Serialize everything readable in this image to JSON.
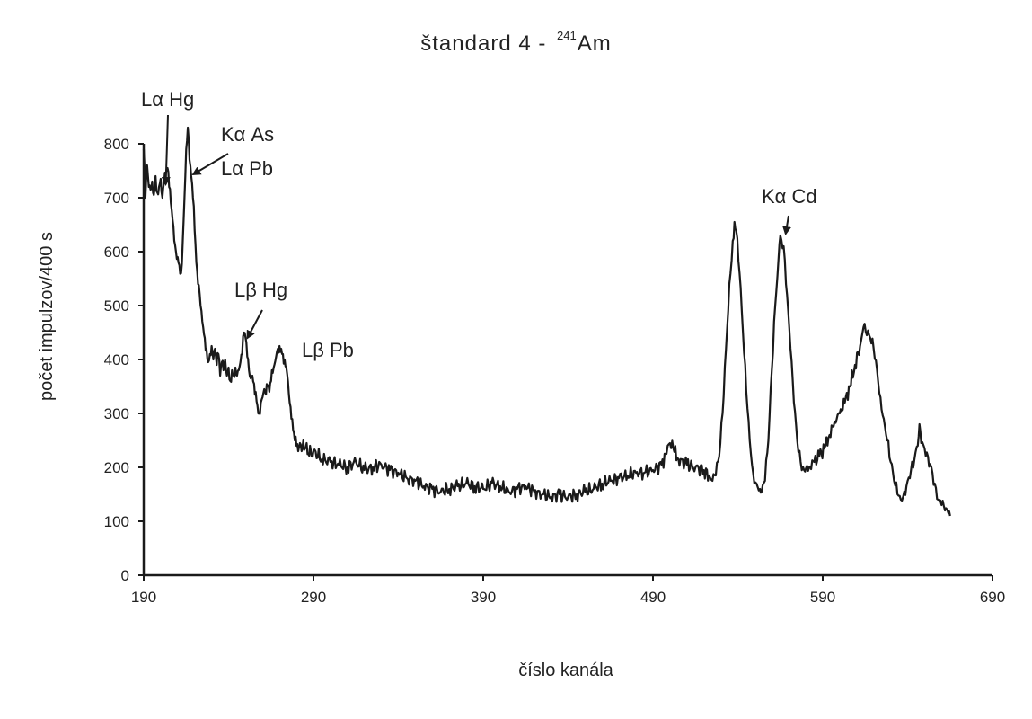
{
  "chart_data": {
    "type": "line",
    "title": "štandard 4 - ",
    "title_isotope_mass": "241",
    "title_element": "Am",
    "xlabel": "číslo kanála",
    "ylabel": "počet impulzov/400 s",
    "xlim": [
      190,
      690
    ],
    "ylim": [
      0,
      800
    ],
    "xticks": [
      "190",
      "290",
      "390",
      "490",
      "590",
      "690"
    ],
    "yticks": [
      "0",
      "100",
      "200",
      "300",
      "400",
      "500",
      "600",
      "700",
      "800"
    ],
    "grid": false,
    "line_color": "#1a1a1a",
    "series": [
      {
        "points": [
          [
            190,
            790
          ],
          [
            191,
            700
          ],
          [
            192,
            760
          ],
          [
            193,
            720
          ],
          [
            194,
            715
          ],
          [
            195,
            730
          ],
          [
            196,
            705
          ],
          [
            197,
            740
          ],
          [
            198,
            710
          ],
          [
            199,
            720
          ],
          [
            200,
            735
          ],
          [
            201,
            700
          ],
          [
            202,
            730
          ],
          [
            203,
            745
          ],
          [
            204,
            755
          ],
          [
            205,
            720
          ],
          [
            206,
            690
          ],
          [
            207,
            660
          ],
          [
            208,
            620
          ],
          [
            209,
            600
          ],
          [
            210,
            590
          ],
          [
            211,
            575
          ],
          [
            212,
            560
          ],
          [
            213,
            620
          ],
          [
            214,
            700
          ],
          [
            215,
            790
          ],
          [
            216,
            830
          ],
          [
            217,
            770
          ],
          [
            218,
            740
          ],
          [
            219,
            700
          ],
          [
            220,
            640
          ],
          [
            221,
            580
          ],
          [
            222,
            540
          ],
          [
            223,
            520
          ],
          [
            224,
            490
          ],
          [
            225,
            460
          ],
          [
            226,
            440
          ],
          [
            227,
            420
          ],
          [
            228,
            395
          ],
          [
            229,
            410
          ],
          [
            230,
            425
          ],
          [
            231,
            400
          ],
          [
            232,
            420
          ],
          [
            233,
            390
          ],
          [
            234,
            410
          ],
          [
            235,
            370
          ],
          [
            236,
            395
          ],
          [
            237,
            380
          ],
          [
            238,
            400
          ],
          [
            239,
            370
          ],
          [
            240,
            385
          ],
          [
            241,
            360
          ],
          [
            242,
            380
          ],
          [
            243,
            370
          ],
          [
            244,
            385
          ],
          [
            245,
            370
          ],
          [
            246,
            380
          ],
          [
            247,
            395
          ],
          [
            248,
            410
          ],
          [
            249,
            450
          ],
          [
            250,
            440
          ],
          [
            251,
            405
          ],
          [
            252,
            380
          ],
          [
            253,
            365
          ],
          [
            254,
            370
          ],
          [
            255,
            355
          ],
          [
            256,
            340
          ],
          [
            257,
            315
          ],
          [
            258,
            300
          ],
          [
            259,
            320
          ],
          [
            260,
            330
          ],
          [
            261,
            345
          ],
          [
            262,
            335
          ],
          [
            263,
            350
          ],
          [
            264,
            340
          ],
          [
            265,
            360
          ],
          [
            266,
            375
          ],
          [
            267,
            390
          ],
          [
            268,
            405
          ],
          [
            269,
            420
          ],
          [
            270,
            425
          ],
          [
            271,
            420
          ],
          [
            272,
            410
          ],
          [
            273,
            400
          ],
          [
            274,
            385
          ],
          [
            275,
            360
          ],
          [
            276,
            320
          ],
          [
            277,
            290
          ],
          [
            278,
            270
          ],
          [
            279,
            250
          ],
          [
            280,
            240
          ],
          [
            281,
            230
          ],
          [
            282,
            245
          ],
          [
            283,
            230
          ],
          [
            284,
            250
          ],
          [
            285,
            235
          ],
          [
            286,
            245
          ],
          [
            287,
            225
          ],
          [
            288,
            240
          ],
          [
            289,
            220
          ],
          [
            290,
            230
          ],
          [
            295,
            215
          ],
          [
            300,
            210
          ],
          [
            305,
            205
          ],
          [
            310,
            200
          ],
          [
            315,
            210
          ],
          [
            320,
            195
          ],
          [
            325,
            200
          ],
          [
            330,
            205
          ],
          [
            335,
            195
          ],
          [
            340,
            190
          ],
          [
            345,
            180
          ],
          [
            350,
            175
          ],
          [
            355,
            165
          ],
          [
            360,
            160
          ],
          [
            365,
            155
          ],
          [
            370,
            160
          ],
          [
            375,
            165
          ],
          [
            380,
            170
          ],
          [
            385,
            165
          ],
          [
            390,
            160
          ],
          [
            395,
            170
          ],
          [
            400,
            165
          ],
          [
            405,
            155
          ],
          [
            410,
            160
          ],
          [
            415,
            165
          ],
          [
            420,
            155
          ],
          [
            425,
            150
          ],
          [
            430,
            145
          ],
          [
            435,
            150
          ],
          [
            440,
            145
          ],
          [
            445,
            150
          ],
          [
            450,
            155
          ],
          [
            455,
            160
          ],
          [
            460,
            170
          ],
          [
            465,
            175
          ],
          [
            470,
            180
          ],
          [
            475,
            185
          ],
          [
            480,
            190
          ],
          [
            485,
            190
          ],
          [
            490,
            195
          ],
          [
            495,
            205
          ],
          [
            498,
            225
          ],
          [
            500,
            245
          ],
          [
            502,
            235
          ],
          [
            505,
            215
          ],
          [
            510,
            205
          ],
          [
            515,
            200
          ],
          [
            520,
            195
          ],
          [
            523,
            185
          ],
          [
            525,
            175
          ],
          [
            527,
            185
          ],
          [
            529,
            220
          ],
          [
            531,
            300
          ],
          [
            533,
            420
          ],
          [
            535,
            540
          ],
          [
            537,
            620
          ],
          [
            538,
            655
          ],
          [
            539,
            640
          ],
          [
            541,
            560
          ],
          [
            543,
            450
          ],
          [
            545,
            340
          ],
          [
            547,
            250
          ],
          [
            549,
            190
          ],
          [
            551,
            170
          ],
          [
            553,
            160
          ],
          [
            554,
            155
          ],
          [
            556,
            175
          ],
          [
            558,
            250
          ],
          [
            560,
            380
          ],
          [
            562,
            500
          ],
          [
            564,
            590
          ],
          [
            565,
            630
          ],
          [
            567,
            610
          ],
          [
            569,
            520
          ],
          [
            571,
            420
          ],
          [
            573,
            320
          ],
          [
            575,
            250
          ],
          [
            577,
            210
          ],
          [
            579,
            195
          ],
          [
            582,
            200
          ],
          [
            585,
            210
          ],
          [
            588,
            220
          ],
          [
            591,
            235
          ],
          [
            594,
            260
          ],
          [
            597,
            285
          ],
          [
            600,
            300
          ],
          [
            603,
            320
          ],
          [
            606,
            350
          ],
          [
            609,
            390
          ],
          [
            612,
            425
          ],
          [
            614,
            460
          ],
          [
            616,
            445
          ],
          [
            618,
            440
          ],
          [
            620,
            420
          ],
          [
            622,
            380
          ],
          [
            624,
            330
          ],
          [
            626,
            290
          ],
          [
            628,
            250
          ],
          [
            630,
            210
          ],
          [
            632,
            175
          ],
          [
            634,
            150
          ],
          [
            636,
            140
          ],
          [
            638,
            155
          ],
          [
            640,
            175
          ],
          [
            642,
            195
          ],
          [
            644,
            215
          ],
          [
            646,
            240
          ],
          [
            647,
            280
          ],
          [
            648,
            245
          ],
          [
            650,
            235
          ],
          [
            652,
            220
          ],
          [
            654,
            200
          ],
          [
            656,
            170
          ],
          [
            658,
            140
          ],
          [
            660,
            130
          ],
          [
            662,
            120
          ],
          [
            664,
            115
          ],
          [
            665,
            110
          ]
        ]
      }
    ],
    "annotations": [
      {
        "text": "Lα Hg",
        "target": [
          203,
          745
        ]
      },
      {
        "text": "Kα As",
        "target": [
          216,
          760
        ]
      },
      {
        "text": "Lα Pb",
        "target": [
          216,
          760
        ]
      },
      {
        "text": "Lβ Hg",
        "target": [
          249,
          450
        ]
      },
      {
        "text": "Lβ Pb",
        "target": [
          270,
          425
        ]
      },
      {
        "text": "Kα Cd",
        "target": [
          565,
          630
        ]
      }
    ]
  }
}
